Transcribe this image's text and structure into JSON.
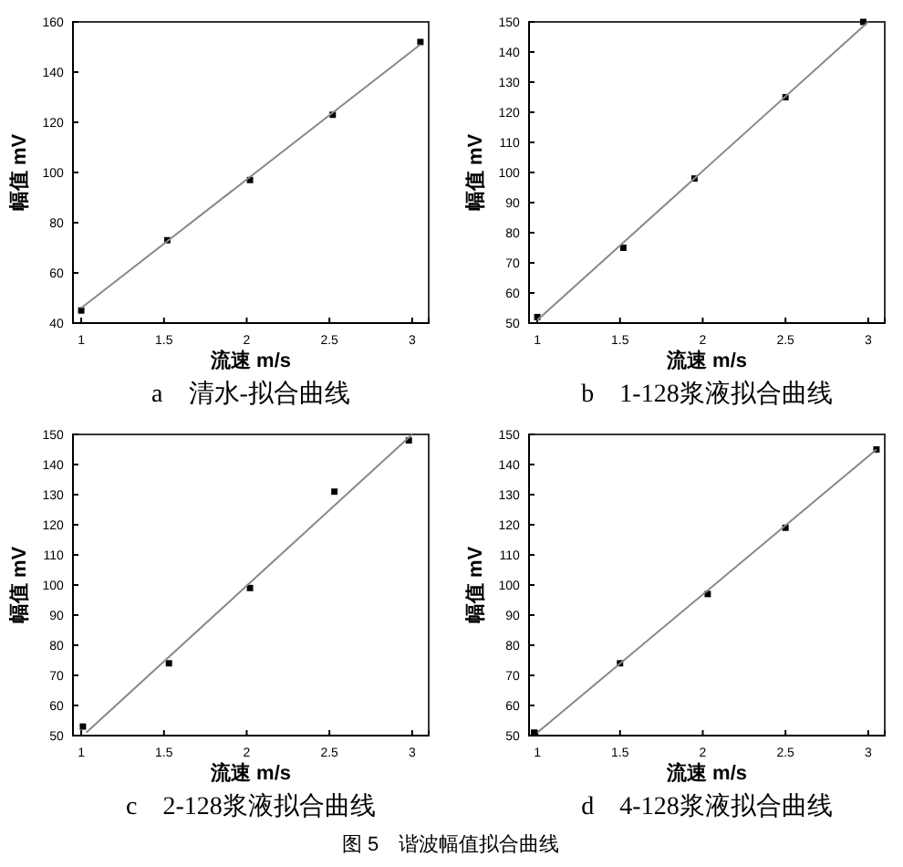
{
  "chart_data": [
    {
      "type": "scatter",
      "title": "a　清水-拟合曲线",
      "xlabel": "流速 m/s",
      "ylabel": "幅值 mV",
      "xlim": [
        0.95,
        3.1
      ],
      "xticks": [
        1,
        1.5,
        2,
        2.5,
        3
      ],
      "ylim": [
        40,
        160
      ],
      "yticks": [
        40,
        60,
        80,
        100,
        120,
        140,
        160
      ],
      "series": [
        {
          "color": "#000000",
          "marker": "square",
          "x": [
            1,
            1.52,
            2.02,
            2.52,
            3.05
          ],
          "values": [
            45,
            73,
            97,
            123,
            152
          ]
        },
        {
          "type": "line",
          "marker": "none",
          "color": "#888888",
          "x": [
            1,
            3.05
          ],
          "values": [
            46,
            151
          ]
        }
      ]
    },
    {
      "type": "scatter",
      "title": "b　1-128浆液拟合曲线",
      "xlabel": "流速 m/s",
      "ylabel": "幅值 mV",
      "xlim": [
        0.95,
        3.1
      ],
      "xticks": [
        1,
        1.5,
        2,
        2.5,
        3
      ],
      "ylim": [
        50,
        150
      ],
      "yticks": [
        50,
        60,
        70,
        80,
        90,
        100,
        110,
        120,
        130,
        140,
        150
      ],
      "series": [
        {
          "color": "#000000",
          "marker": "square",
          "x": [
            1,
            1.52,
            1.95,
            2.5,
            2.97
          ],
          "values": [
            52,
            75,
            98,
            125,
            150
          ]
        },
        {
          "type": "line",
          "marker": "none",
          "color": "#888888",
          "x": [
            1,
            3
          ],
          "values": [
            51,
            150
          ]
        }
      ]
    },
    {
      "type": "scatter",
      "title": "c　2-128浆液拟合曲线",
      "xlabel": "流速 m/s",
      "ylabel": "幅值 mV",
      "xlim": [
        0.95,
        3.1
      ],
      "xticks": [
        1,
        1.5,
        2,
        2.5,
        3
      ],
      "ylim": [
        50,
        150
      ],
      "yticks": [
        50,
        60,
        70,
        80,
        90,
        100,
        110,
        120,
        130,
        140,
        150
      ],
      "series": [
        {
          "color": "#000000",
          "marker": "square",
          "x": [
            1.01,
            1.53,
            2.02,
            2.53,
            2.98
          ],
          "values": [
            53,
            74,
            99,
            131,
            148
          ]
        },
        {
          "type": "line",
          "marker": "none",
          "color": "#888888",
          "x": [
            1.03,
            3
          ],
          "values": [
            51,
            150
          ]
        }
      ]
    },
    {
      "type": "scatter",
      "title": "d　4-128浆液拟合曲线",
      "xlabel": "流速 m/s",
      "ylabel": "幅值 mV",
      "xlim": [
        0.95,
        3.1
      ],
      "xticks": [
        1,
        1.5,
        2,
        2.5,
        3
      ],
      "ylim": [
        50,
        150
      ],
      "yticks": [
        50,
        60,
        70,
        80,
        90,
        100,
        110,
        120,
        130,
        140,
        150
      ],
      "annotations": [
        "图 5　谐波幅值拟合曲线"
      ],
      "series": [
        {
          "color": "#000000",
          "marker": "square",
          "x": [
            0.98,
            1.5,
            2.03,
            2.5,
            3.05
          ],
          "values": [
            51,
            74,
            97,
            119,
            145
          ]
        },
        {
          "type": "line",
          "marker": "none",
          "color": "#888888",
          "x": [
            1,
            3.05
          ],
          "values": [
            51,
            145
          ]
        }
      ]
    }
  ]
}
